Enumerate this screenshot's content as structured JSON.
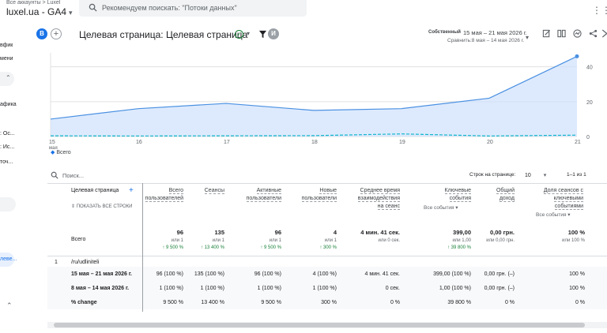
{
  "topbar": {
    "breadcrumb": "Все аккаунты > Luxel",
    "property": "luxel.ua - GA4",
    "search_placeholder": "Рекомендуем поискать: \"Потоки данных\""
  },
  "left_nav": {
    "items": [
      "вфик",
      "мени",
      "афика",
      ": Ос...",
      ": Ис...",
      "точ...",
      "леве..."
    ]
  },
  "header": {
    "avatar_letter": "B",
    "page_title": "Целевая страница: Целевая страница",
    "compare_avatar": "И",
    "range_label": "Собственный",
    "date_range": "15 мая – 21 мая 2026 г.",
    "compare_range": "Сравнить:8 мая – 14 мая 2026 г."
  },
  "chart_data": {
    "type": "area",
    "x": [
      "15 мая",
      "16",
      "17",
      "18",
      "19",
      "20",
      "21"
    ],
    "series": [
      {
        "values": [
          10,
          16,
          19,
          15,
          16,
          22,
          46
        ]
      },
      {
        "values": [
          0.4,
          0.3,
          0.4,
          0.5,
          1.5,
          0.3,
          0.8
        ]
      }
    ],
    "yticks": [
      "0",
      "20",
      "40"
    ],
    "ylim": [
      0,
      48
    ],
    "legend": [
      "Всего"
    ],
    "colors": {
      "current": "#4a90e2",
      "fill": "#d2e3fc",
      "previous": "#12b5cb"
    }
  },
  "table": {
    "search_placeholder": "Поиск...",
    "rows_per_page_label": "Строк на странице:",
    "rows_per_page": "10",
    "pagination": "1–1 из 1",
    "dimension_header": "Целевая страница",
    "show_all_rows": "ПОКАЗАТЬ ВСЕ СТРОКИ",
    "columns": [
      [
        "Всего",
        "пользователей"
      ],
      [
        "Сеансы"
      ],
      [
        "Активные",
        "пользователи"
      ],
      [
        "Новые",
        "пользователи"
      ],
      [
        "Среднее время",
        "взаимодействия",
        "на сеанс"
      ],
      [
        "Ключевые",
        "события"
      ],
      [
        "Общий",
        "доход"
      ],
      [
        "Доля сеансов с",
        "ключевыми",
        "событиями"
      ]
    ],
    "key_events_filter": "Все события",
    "share_filter": "Все события",
    "totals_label": "Всего",
    "totals": [
      {
        "value": "96",
        "sub": "или 1",
        "change": "↑ 9 500 %"
      },
      {
        "value": "135",
        "sub": "или 1",
        "change": "↑ 13 400 %"
      },
      {
        "value": "96",
        "sub": "или 1",
        "change": "↑ 9 500 %"
      },
      {
        "value": "4",
        "sub": "или 1",
        "change": "↑ 300 %"
      },
      {
        "value": "4 мин. 41 сек.",
        "sub": "или 0 сек.",
        "change": ""
      },
      {
        "value": "399,00",
        "sub": "или 1,00",
        "change": "↑ 39 800 %"
      },
      {
        "value": "0,00 грн.",
        "sub": "или 0,00 грн.",
        "change": ""
      },
      {
        "value": "100 %",
        "sub": "или 100 %",
        "change": ""
      }
    ],
    "row_index": "1",
    "row_path": "/ru/udliniteli",
    "sub_rows": [
      {
        "label": "15 мая – 21 мая 2026 г.",
        "cells": [
          "96 (100 %)",
          "135 (100 %)",
          "96 (100 %)",
          "4 (100 %)",
          "4 мин. 41 сек.",
          "399,00 (100 %)",
          "0,00 грн. (–)",
          "100 %"
        ]
      },
      {
        "label": "8 мая – 14 мая 2026 г.",
        "cells": [
          "1 (100 %)",
          "1 (100 %)",
          "1 (100 %)",
          "1 (100 %)",
          "0 сек.",
          "1,00 (100 %)",
          "0,00 грн. (–)",
          "100 %"
        ]
      },
      {
        "label": "% change",
        "cells": [
          "9 500 %",
          "13 400 %",
          "9 500 %",
          "300 %",
          "0 %",
          "39 800 %",
          "0 %",
          "0 %"
        ]
      }
    ]
  }
}
